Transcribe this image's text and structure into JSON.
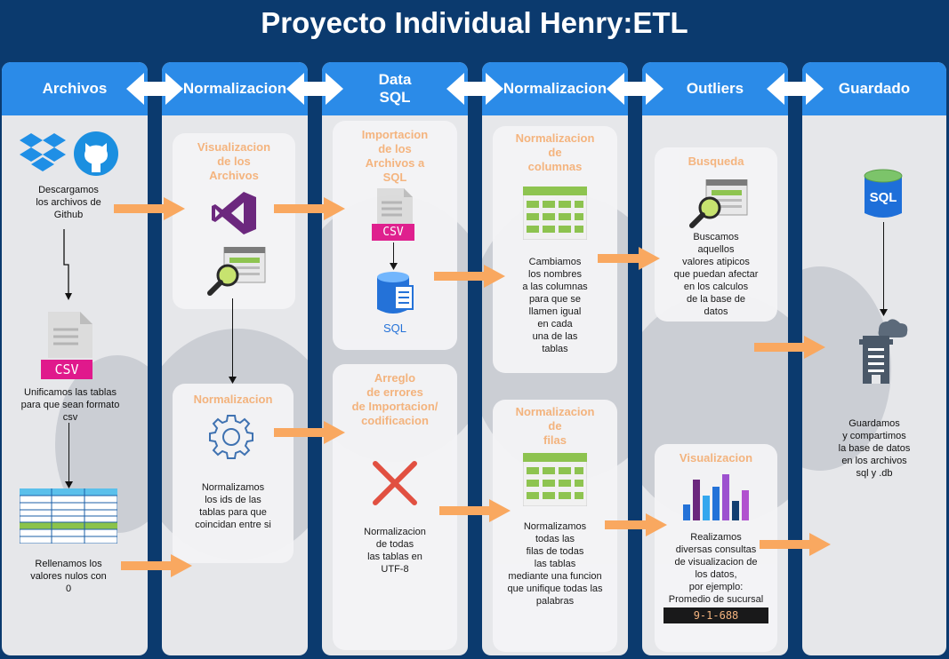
{
  "title": "Proyecto Individual Henry:ETL",
  "columns": {
    "archivos": "Archivos",
    "normalizacion1": "Normalizacion",
    "data_sql_1": "Data",
    "data_sql_2": "SQL",
    "normalizacion2": "Normalizacion",
    "outliers": "Outliers",
    "guardado": "Guardado"
  },
  "archivos": {
    "descargamos": [
      "Descargamos",
      "los archivos de",
      "Github"
    ],
    "unificamos": [
      "Unificamos las tablas",
      "para que sean formato",
      "csv"
    ],
    "rellenamos": [
      "Rellenamos los",
      "valores nulos con",
      "0"
    ],
    "csv_label": "CSV"
  },
  "norm1": {
    "visualizacion_title": [
      "Visualizacion",
      "de los",
      "Archivos"
    ],
    "normalizacion_title": "Normalizacion",
    "normalizamos": [
      "Normalizamos",
      "los ids de las",
      "tablas para que",
      "coincidan entre si"
    ]
  },
  "datasql": {
    "importacion_title": [
      "Importacion",
      "de los",
      "Archivos a",
      "SQL"
    ],
    "csv_label": "CSV",
    "sql_label": "SQL",
    "arreglo_title": [
      "Arreglo",
      "de errores",
      "de Importacion/",
      "codificacion"
    ],
    "normalizacion_utf": [
      "Normalizacion",
      "de todas",
      "las tablas en",
      "UTF-8"
    ]
  },
  "norm2": {
    "columnas_title": [
      "Normalizacion",
      "de",
      "columnas"
    ],
    "columnas_text": [
      "Cambiamos",
      "los nombres",
      "a las columnas",
      "para que se",
      "llamen igual",
      "en cada",
      "una de las",
      "tablas"
    ],
    "filas_title": [
      "Normalizacion",
      "de",
      "filas"
    ],
    "filas_text": [
      "Normalizamos",
      "todas las",
      "filas de todas",
      "las tablas",
      "mediante una funcion",
      "que unifique todas las",
      "palabras"
    ]
  },
  "outliers": {
    "busqueda_title": "Busqueda",
    "busqueda_text": [
      "Buscamos",
      "aquellos",
      "valores atipicos",
      "que puedan afectar",
      "en los calculos",
      "de la base de",
      "datos"
    ],
    "visualizacion_title": "Visualizacion",
    "visualizacion_text": [
      "Realizamos",
      "diversas consultas",
      "de visualizacion de",
      "los datos,",
      "por ejemplo:",
      "Promedio de sucursal"
    ],
    "code": "9-1-688"
  },
  "guardado": {
    "sql_icon_label": "SQL",
    "guardamos": [
      "Guardamos",
      "y compartimos",
      "la base de datos",
      "en los archivos",
      "sql y .db"
    ]
  },
  "colors": {
    "background": "#0b3a6e",
    "header": "#2b8be8",
    "card_title": "#f5b27a",
    "arrow": "#f9a860",
    "csv": "#e0198c",
    "visual_studio": "#68217a",
    "github": "#1b8fe0",
    "error_x": "#e14a3b",
    "sql_db": "#1e6fd9"
  },
  "icons": [
    "dropbox-icon",
    "github-icon",
    "csv-file-icon",
    "table-icon",
    "visual-studio-icon",
    "search-icon",
    "gear-icon",
    "sql-database-icon",
    "error-x-icon",
    "bar-chart-icon",
    "cloud-building-icon"
  ]
}
